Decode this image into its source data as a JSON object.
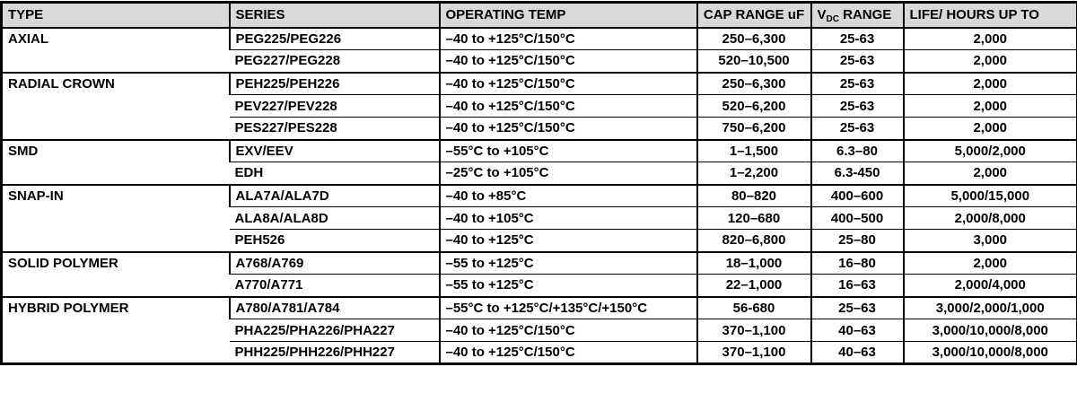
{
  "table": {
    "colors": {
      "header_bg": "#d9d9d9",
      "border": "#000000",
      "text": "#000000",
      "row_bg": "#ffffff"
    },
    "headers": {
      "type": "TYPE",
      "series": "SERIES",
      "temp": "OPERATING TEMP",
      "cap": "CAP RANGE uF",
      "vdc_v": "V",
      "vdc_sub": "DC",
      "vdc_suffix": "RANGE",
      "life": "LIFE/ HOURS UP TO"
    },
    "groups": [
      {
        "type": "AXIAL",
        "rows": [
          {
            "series": "PEG225/PEG226",
            "temp": "–40 to +125°C/150°C",
            "cap": "250–6,300",
            "vdc": "25-63",
            "life": "2,000"
          },
          {
            "series": "PEG227/PEG228",
            "temp": "–40 to +125°C/150°C",
            "cap": "520–10,500",
            "vdc": "25-63",
            "life": "2,000"
          }
        ]
      },
      {
        "type": "RADIAL CROWN",
        "rows": [
          {
            "series": "PEH225/PEH226",
            "temp": "–40 to +125°C/150°C",
            "cap": "250–6,300",
            "vdc": "25-63",
            "life": "2,000"
          },
          {
            "series": "PEV227/PEV228",
            "temp": "–40 to +125°C/150°C",
            "cap": "520–6,200",
            "vdc": "25-63",
            "life": "2,000"
          },
          {
            "series": "PES227/PES228",
            "temp": "–40 to +125°C/150°C",
            "cap": "750–6,200",
            "vdc": "25-63",
            "life": "2,000"
          }
        ]
      },
      {
        "type": "SMD",
        "rows": [
          {
            "series": "EXV/EEV",
            "temp": "–55°C to +105°C",
            "cap": "1–1,500",
            "vdc": "6.3–80",
            "life": "5,000/2,000"
          },
          {
            "series": "EDH",
            "temp": "–25°C to +105°C",
            "cap": "1–2,200",
            "vdc": "6.3-450",
            "life": "2,000"
          }
        ]
      },
      {
        "type": "SNAP-IN",
        "rows": [
          {
            "series": "ALA7A/ALA7D",
            "temp": "–40 to +85°C",
            "cap": "80–820",
            "vdc": "400–600",
            "life": "5,000/15,000"
          },
          {
            "series": "ALA8A/ALA8D",
            "temp": "–40 to +105°C",
            "cap": "120–680",
            "vdc": "400–500",
            "life": "2,000/8,000"
          },
          {
            "series": "PEH526",
            "temp": "–40 to +125°C",
            "cap": "820–6,800",
            "vdc": "25–80",
            "life": "3,000"
          }
        ]
      },
      {
        "type": "SOLID POLYMER",
        "rows": [
          {
            "series": "A768/A769",
            "temp": "–55 to +125°C",
            "cap": "18–1,000",
            "vdc": "16–80",
            "life": "2,000"
          },
          {
            "series": "A770/A771",
            "temp": "–55 to +125°C",
            "cap": "22–1,000",
            "vdc": "16–63",
            "life": "2,000/4,000"
          }
        ]
      },
      {
        "type": "HYBRID POLYMER",
        "rows": [
          {
            "series": "A780/A781/A784",
            "temp": "–55°C to +125°C/+135°C/+150°C",
            "cap": "56-680",
            "vdc": "25–63",
            "life": "3,000/2,000/1,000"
          },
          {
            "series": "PHA225/PHA226/PHA227",
            "temp": "–40 to +125°C/150°C",
            "cap": "370–1,100",
            "vdc": "40–63",
            "life": "3,000/10,000/8,000"
          },
          {
            "series": "PHH225/PHH226/PHH227",
            "temp": "–40 to +125°C/150°C",
            "cap": "370–1,100",
            "vdc": "40–63",
            "life": "3,000/10,000/8,000"
          }
        ]
      }
    ]
  }
}
